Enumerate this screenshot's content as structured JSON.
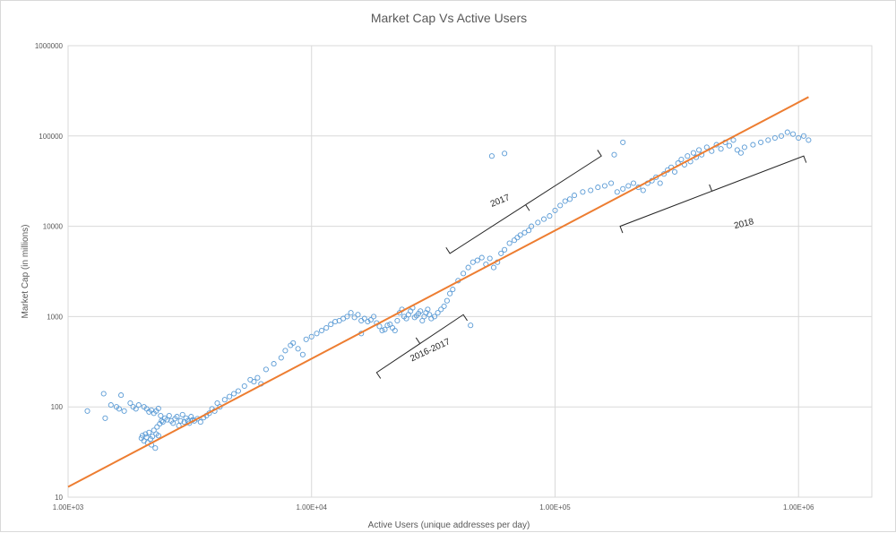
{
  "chart_data": {
    "type": "scatter",
    "title": "Market Cap Vs Active Users",
    "xlabel": "Active Users (unique addresses per day)",
    "ylabel": "Market Cap (in millions)",
    "x_scale": "log",
    "y_scale": "log",
    "xlim": [
      1000,
      2000000
    ],
    "ylim": [
      10,
      1000000
    ],
    "x_ticks": [
      1000,
      10000,
      100000,
      1000000
    ],
    "x_tick_labels": [
      "1.00E+03",
      "1.00E+04",
      "1.00E+05",
      "1.00E+06"
    ],
    "y_ticks": [
      10,
      100,
      1000,
      10000,
      100000,
      1000000
    ],
    "y_tick_labels": [
      "10",
      "100",
      "1000",
      "10000",
      "100000",
      "1000000"
    ],
    "grid": true,
    "legend": "none",
    "colors": {
      "points": "#5b9bd5",
      "trend": "#ed7d31",
      "grid": "#d9d9d9"
    },
    "trendline": {
      "x": [
        1000,
        1100000
      ],
      "y": [
        13,
        270000
      ]
    },
    "annotations": [
      {
        "text": "2017",
        "x": 60000,
        "y": 18000
      },
      {
        "text": "2018",
        "x": 600000,
        "y": 10000
      },
      {
        "text": "2016-2017",
        "x": 31000,
        "y": 400
      }
    ],
    "series": [
      {
        "points": [
          [
            1200,
            90
          ],
          [
            1400,
            140
          ],
          [
            1420,
            75
          ],
          [
            1500,
            105
          ],
          [
            1580,
            100
          ],
          [
            1620,
            95
          ],
          [
            1650,
            135
          ],
          [
            1700,
            90
          ],
          [
            1800,
            110
          ],
          [
            1850,
            100
          ],
          [
            1900,
            95
          ],
          [
            1950,
            105
          ],
          [
            2000,
            45
          ],
          [
            2020,
            48
          ],
          [
            2050,
            42
          ],
          [
            2080,
            50
          ],
          [
            2100,
            46
          ],
          [
            2120,
            40
          ],
          [
            2150,
            52
          ],
          [
            2180,
            44
          ],
          [
            2200,
            38
          ],
          [
            2220,
            47
          ],
          [
            2250,
            55
          ],
          [
            2280,
            35
          ],
          [
            2300,
            50
          ],
          [
            2320,
            60
          ],
          [
            2350,
            48
          ],
          [
            2380,
            65
          ],
          [
            2050,
            100
          ],
          [
            2100,
            95
          ],
          [
            2150,
            88
          ],
          [
            2200,
            92
          ],
          [
            2250,
            85
          ],
          [
            2300,
            90
          ],
          [
            2350,
            96
          ],
          [
            2400,
            80
          ],
          [
            2420,
            70
          ],
          [
            2450,
            68
          ],
          [
            2500,
            75
          ],
          [
            2550,
            72
          ],
          [
            2600,
            80
          ],
          [
            2650,
            70
          ],
          [
            2700,
            66
          ],
          [
            2750,
            74
          ],
          [
            2800,
            78
          ],
          [
            2850,
            62
          ],
          [
            2900,
            70
          ],
          [
            2950,
            82
          ],
          [
            3000,
            68
          ],
          [
            3050,
            75
          ],
          [
            3100,
            70
          ],
          [
            3150,
            66
          ],
          [
            3200,
            78
          ],
          [
            3250,
            72
          ],
          [
            3300,
            70
          ],
          [
            3400,
            74
          ],
          [
            3500,
            68
          ],
          [
            3600,
            76
          ],
          [
            3700,
            80
          ],
          [
            3800,
            85
          ],
          [
            3900,
            95
          ],
          [
            4000,
            90
          ],
          [
            4100,
            110
          ],
          [
            4200,
            100
          ],
          [
            4400,
            120
          ],
          [
            4600,
            130
          ],
          [
            4800,
            140
          ],
          [
            5000,
            150
          ],
          [
            5300,
            170
          ],
          [
            5600,
            200
          ],
          [
            5800,
            190
          ],
          [
            6000,
            210
          ],
          [
            6200,
            180
          ],
          [
            6500,
            260
          ],
          [
            7000,
            300
          ],
          [
            7500,
            350
          ],
          [
            7800,
            420
          ],
          [
            8200,
            480
          ],
          [
            8400,
            510
          ],
          [
            8800,
            440
          ],
          [
            9200,
            380
          ],
          [
            9500,
            560
          ],
          [
            10000,
            600
          ],
          [
            10500,
            650
          ],
          [
            11000,
            700
          ],
          [
            11500,
            750
          ],
          [
            12000,
            820
          ],
          [
            12500,
            880
          ],
          [
            13000,
            900
          ],
          [
            13500,
            950
          ],
          [
            14000,
            1000
          ],
          [
            14500,
            1100
          ],
          [
            15000,
            980
          ],
          [
            15500,
            1050
          ],
          [
            16000,
            900
          ],
          [
            16500,
            950
          ],
          [
            17000,
            880
          ],
          [
            17500,
            920
          ],
          [
            18000,
            1000
          ],
          [
            18500,
            850
          ],
          [
            19000,
            780
          ],
          [
            19500,
            700
          ],
          [
            20000,
            720
          ],
          [
            20500,
            800
          ],
          [
            21000,
            820
          ],
          [
            21500,
            750
          ],
          [
            22000,
            700
          ],
          [
            22500,
            900
          ],
          [
            23000,
            1100
          ],
          [
            23500,
            1200
          ],
          [
            24000,
            1000
          ],
          [
            24500,
            950
          ],
          [
            25000,
            1050
          ],
          [
            25500,
            1150
          ],
          [
            26000,
            1250
          ],
          [
            26500,
            980
          ],
          [
            27000,
            1020
          ],
          [
            27500,
            1080
          ],
          [
            28000,
            1150
          ],
          [
            28500,
            900
          ],
          [
            29000,
            1000
          ],
          [
            29500,
            1100
          ],
          [
            30000,
            1200
          ],
          [
            30500,
            1050
          ],
          [
            31000,
            950
          ],
          [
            32000,
            1000
          ],
          [
            33000,
            1100
          ],
          [
            34000,
            1200
          ],
          [
            35000,
            1300
          ],
          [
            36000,
            1500
          ],
          [
            37000,
            1800
          ],
          [
            38000,
            2000
          ],
          [
            40000,
            2500
          ],
          [
            42000,
            3000
          ],
          [
            44000,
            3500
          ],
          [
            46000,
            4000
          ],
          [
            48000,
            4200
          ],
          [
            50000,
            4500
          ],
          [
            52000,
            3800
          ],
          [
            54000,
            4400
          ],
          [
            56000,
            3500
          ],
          [
            58000,
            4000
          ],
          [
            60000,
            5000
          ],
          [
            62000,
            5500
          ],
          [
            65000,
            6500
          ],
          [
            68000,
            7000
          ],
          [
            70000,
            7500
          ],
          [
            72000,
            8000
          ],
          [
            75000,
            8500
          ],
          [
            78000,
            9000
          ],
          [
            80000,
            10000
          ],
          [
            85000,
            11000
          ],
          [
            90000,
            12000
          ],
          [
            95000,
            13000
          ],
          [
            100000,
            15000
          ],
          [
            105000,
            17000
          ],
          [
            110000,
            19000
          ],
          [
            115000,
            20000
          ],
          [
            120000,
            22000
          ],
          [
            130000,
            24000
          ],
          [
            140000,
            25000
          ],
          [
            150000,
            27000
          ],
          [
            160000,
            28000
          ],
          [
            170000,
            30000
          ],
          [
            180000,
            24000
          ],
          [
            190000,
            26000
          ],
          [
            200000,
            28000
          ],
          [
            210000,
            30000
          ],
          [
            220000,
            27000
          ],
          [
            230000,
            25000
          ],
          [
            240000,
            30000
          ],
          [
            250000,
            32000
          ],
          [
            260000,
            35000
          ],
          [
            270000,
            30000
          ],
          [
            280000,
            38000
          ],
          [
            290000,
            42000
          ],
          [
            300000,
            45000
          ],
          [
            310000,
            40000
          ],
          [
            320000,
            50000
          ],
          [
            330000,
            55000
          ],
          [
            340000,
            48000
          ],
          [
            350000,
            60000
          ],
          [
            360000,
            52000
          ],
          [
            370000,
            65000
          ],
          [
            380000,
            58000
          ],
          [
            390000,
            70000
          ],
          [
            400000,
            62000
          ],
          [
            420000,
            75000
          ],
          [
            440000,
            68000
          ],
          [
            460000,
            80000
          ],
          [
            480000,
            72000
          ],
          [
            500000,
            85000
          ],
          [
            520000,
            78000
          ],
          [
            540000,
            90000
          ],
          [
            560000,
            70000
          ],
          [
            580000,
            65000
          ],
          [
            600000,
            75000
          ],
          [
            650000,
            80000
          ],
          [
            700000,
            85000
          ],
          [
            750000,
            90000
          ],
          [
            800000,
            95000
          ],
          [
            850000,
            100000
          ],
          [
            900000,
            110000
          ],
          [
            950000,
            105000
          ],
          [
            1000000,
            95000
          ],
          [
            1050000,
            100000
          ],
          [
            1100000,
            90000
          ],
          [
            55000,
            60000
          ],
          [
            62000,
            64000
          ],
          [
            16000,
            650
          ],
          [
            45000,
            800
          ],
          [
            175000,
            62000
          ],
          [
            190000,
            85000
          ]
        ]
      }
    ]
  }
}
